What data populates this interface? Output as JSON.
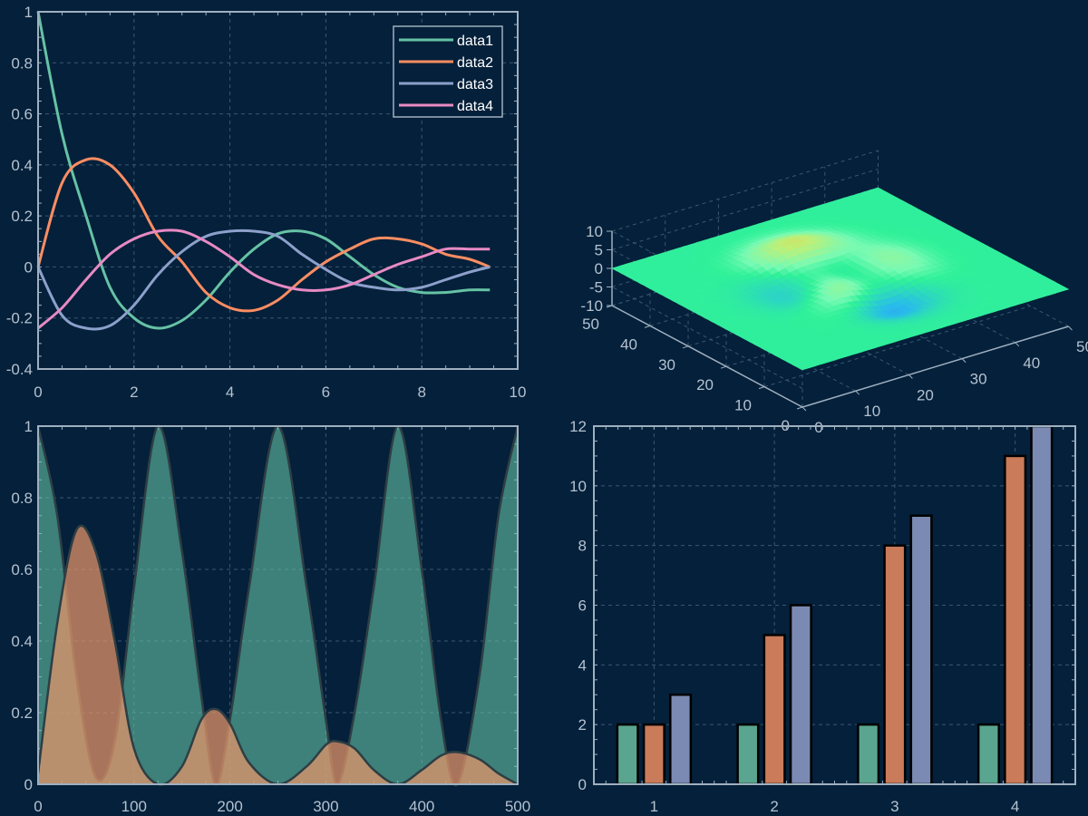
{
  "colors": {
    "background": "#04203a",
    "axis": "#9fb0c0",
    "grid": "#3a5670",
    "tick_text": "#b4c2d0",
    "line1": "#66c2a5",
    "line2": "#fc8d62",
    "line3": "#8da0cb",
    "line4": "#e78ac3"
  },
  "chart_data": [
    {
      "type": "line",
      "xlim": [
        0,
        10
      ],
      "ylim": [
        -0.4,
        1
      ],
      "xticks": [
        "0",
        "2",
        "4",
        "6",
        "8",
        "10"
      ],
      "yticks": [
        "-0.4",
        "-0.2",
        "0",
        "0.2",
        "0.4",
        "0.6",
        "0.8",
        "1"
      ],
      "grid": true,
      "legend_position": "top-right",
      "x": [
        0,
        0.5,
        1,
        1.5,
        2,
        2.5,
        3,
        3.5,
        4,
        4.5,
        5,
        5.5,
        6,
        6.5,
        7,
        7.5,
        8,
        8.5,
        9,
        9.42
      ],
      "series": [
        {
          "name": "data1",
          "color": "#66c2a5",
          "values": [
            1.0,
            0.52,
            0.2,
            -0.08,
            -0.2,
            -0.24,
            -0.21,
            -0.13,
            -0.02,
            0.07,
            0.13,
            0.14,
            0.11,
            0.04,
            -0.03,
            -0.08,
            -0.1,
            -0.1,
            -0.09,
            -0.09
          ]
        },
        {
          "name": "data2",
          "color": "#fc8d62",
          "values": [
            0.0,
            0.33,
            0.42,
            0.4,
            0.29,
            0.12,
            0.02,
            -0.1,
            -0.16,
            -0.17,
            -0.13,
            -0.05,
            0.02,
            0.07,
            0.11,
            0.11,
            0.09,
            0.05,
            0.03,
            0.0
          ]
        },
        {
          "name": "data3",
          "color": "#8da0cb",
          "values": [
            0.0,
            -0.19,
            -0.24,
            -0.23,
            -0.15,
            -0.03,
            0.06,
            0.12,
            0.14,
            0.14,
            0.12,
            0.05,
            -0.01,
            -0.06,
            -0.08,
            -0.09,
            -0.08,
            -0.05,
            -0.02,
            0.0
          ]
        },
        {
          "name": "data4",
          "color": "#e78ac3",
          "values": [
            -0.24,
            -0.16,
            -0.05,
            0.05,
            0.11,
            0.14,
            0.14,
            0.1,
            0.04,
            -0.03,
            -0.07,
            -0.09,
            -0.09,
            -0.07,
            -0.03,
            0.01,
            0.04,
            0.07,
            0.07,
            0.07
          ]
        }
      ]
    },
    {
      "type": "surface",
      "xlim": [
        0,
        50
      ],
      "ylim": [
        0,
        50
      ],
      "zlim": [
        -10,
        10
      ],
      "xticks": [
        "0",
        "10",
        "20",
        "30",
        "40",
        "50"
      ],
      "yticks": [
        "0",
        "10",
        "20",
        "30",
        "40",
        "50"
      ],
      "zticks": [
        "-10",
        "-5",
        "0",
        "5",
        "10"
      ],
      "grid": true,
      "colormap": "turbo"
    },
    {
      "type": "area",
      "xlim": [
        0,
        500
      ],
      "ylim": [
        0,
        1
      ],
      "xticks": [
        "0",
        "100",
        "200",
        "300",
        "400",
        "500"
      ],
      "yticks": [
        "0",
        "0.2",
        "0.4",
        "0.6",
        "0.8",
        "1"
      ],
      "grid": true,
      "x": [
        0,
        20,
        40,
        60,
        80,
        100,
        125,
        150,
        170,
        185,
        200,
        220,
        250,
        280,
        300,
        312,
        330,
        350,
        375,
        400,
        420,
        437,
        460,
        480,
        500
      ],
      "series": [
        {
          "color": "#66c2a5",
          "values": [
            1.0,
            0.75,
            0.3,
            0.02,
            0.12,
            0.55,
            1.0,
            0.65,
            0.25,
            0.0,
            0.18,
            0.55,
            1.0,
            0.55,
            0.18,
            0.0,
            0.2,
            0.55,
            1.0,
            0.6,
            0.18,
            0.0,
            0.3,
            0.75,
            1.0
          ]
        },
        {
          "color": "#e8956a",
          "values": [
            0.03,
            0.45,
            0.71,
            0.65,
            0.4,
            0.1,
            0.0,
            0.05,
            0.18,
            0.21,
            0.17,
            0.06,
            0.0,
            0.05,
            0.11,
            0.12,
            0.1,
            0.04,
            0.0,
            0.04,
            0.08,
            0.09,
            0.07,
            0.03,
            0.0
          ]
        }
      ]
    },
    {
      "type": "bar",
      "xlim": [
        0.5,
        4.5
      ],
      "ylim": [
        0,
        12
      ],
      "categories": [
        "1",
        "2",
        "3",
        "4"
      ],
      "yticks": [
        "0",
        "2",
        "4",
        "6",
        "8",
        "10",
        "12"
      ],
      "grid": true,
      "series": [
        {
          "color": "#5aa58f",
          "values": [
            2,
            2,
            2,
            2
          ]
        },
        {
          "color": "#c97b5a",
          "values": [
            2,
            5,
            8,
            11
          ]
        },
        {
          "color": "#7a8ab3",
          "values": [
            3,
            6,
            9,
            12
          ]
        }
      ]
    }
  ]
}
